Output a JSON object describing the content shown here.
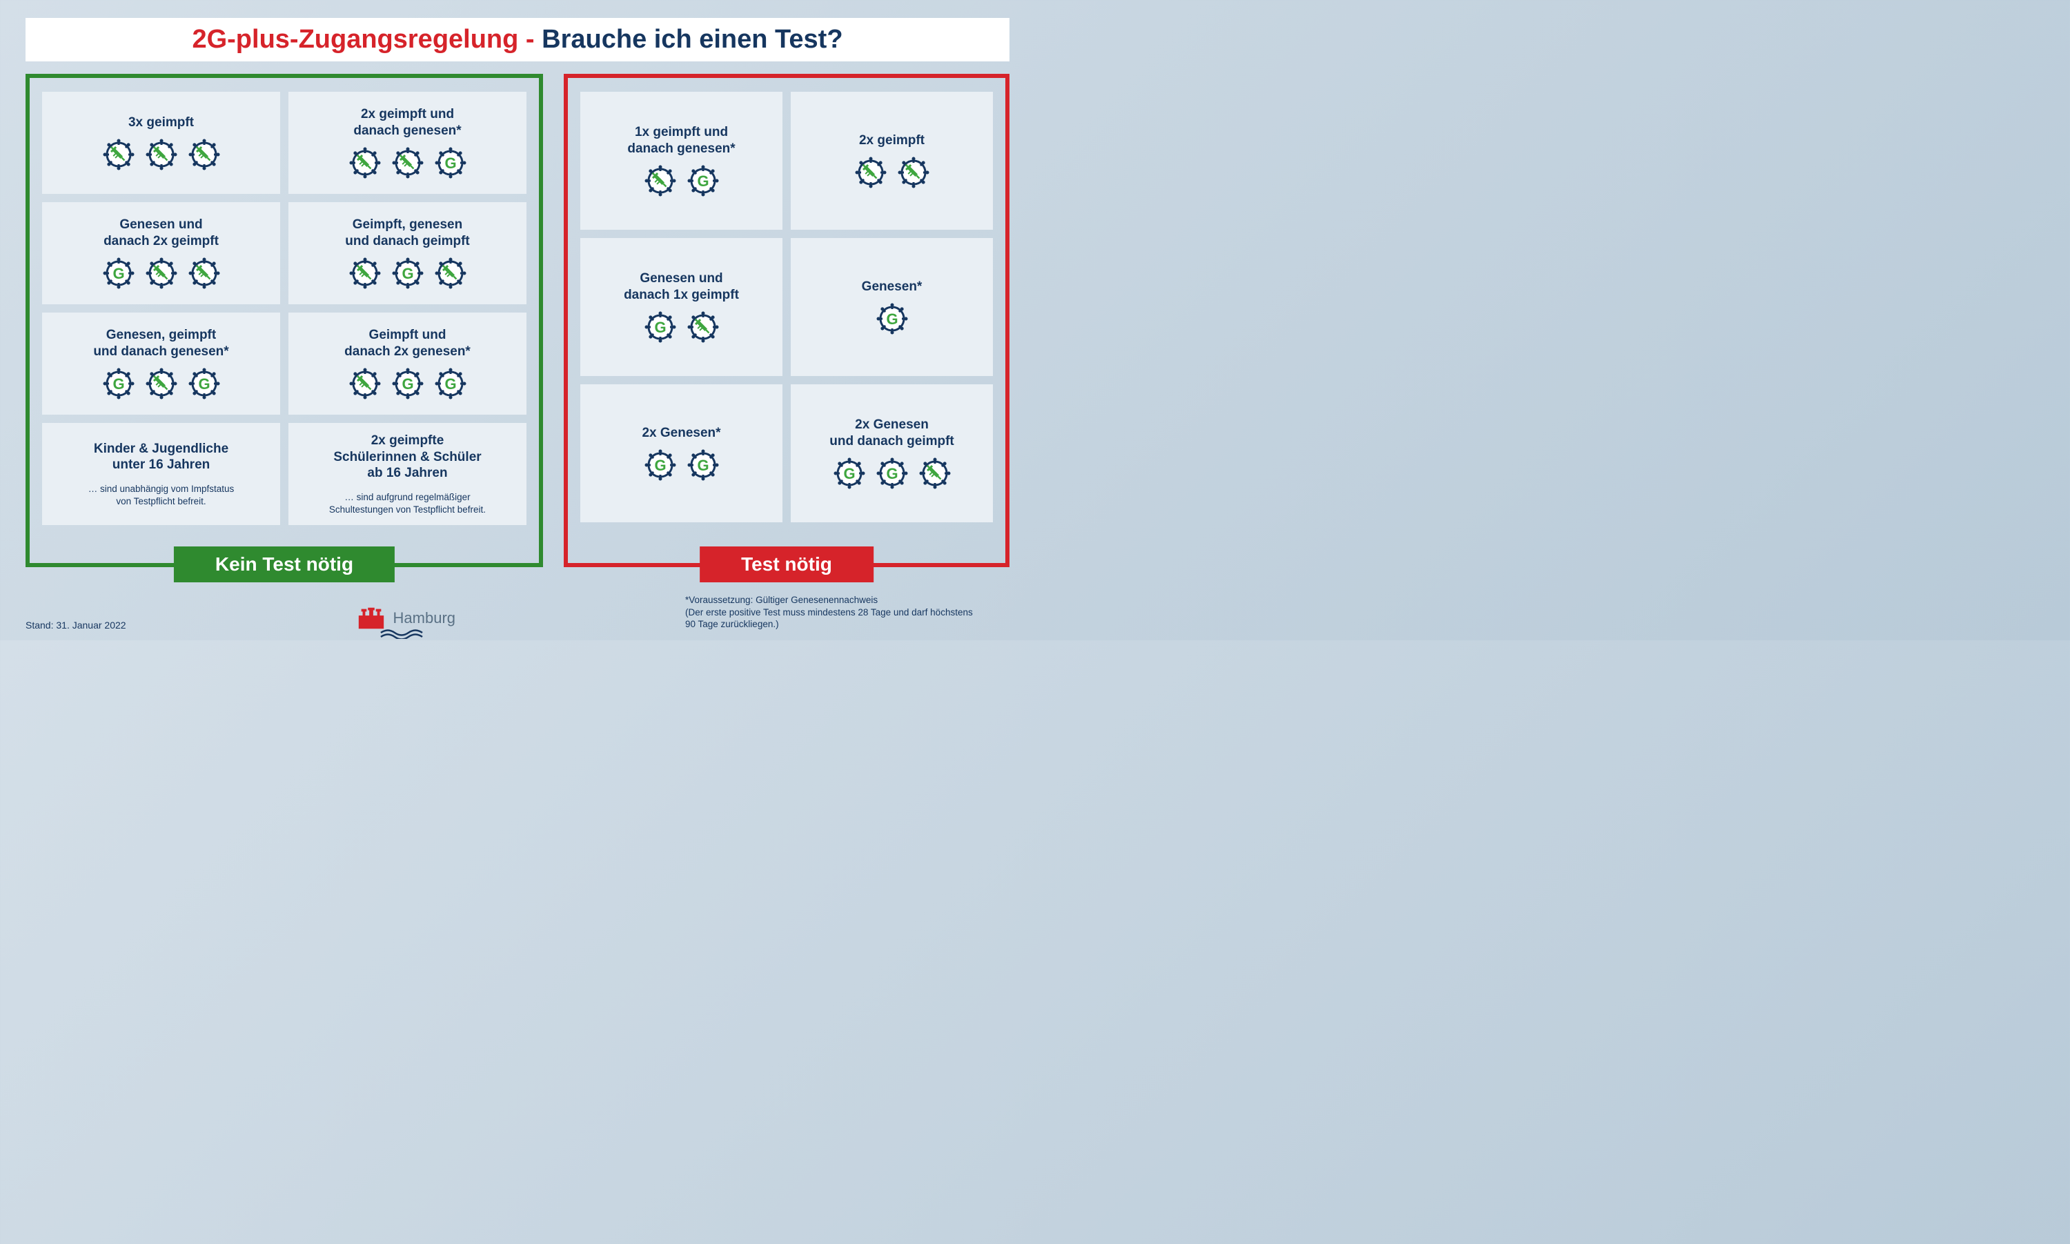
{
  "colors": {
    "navy": "#16365f",
    "red": "#d6232a",
    "green_border": "#2f8a2f",
    "icon_green": "#3fa63f",
    "card_bg": "#e9eff4",
    "bg_grad_from": "#d4dfe8",
    "bg_grad_to": "#b8cad8"
  },
  "title": {
    "part1": "2G-plus-Zugangsregelung - ",
    "part2": "Brauche ich einen Test?"
  },
  "panels": {
    "no_test": {
      "label": "Kein Test nötig",
      "cards": [
        {
          "title": "3x geimpft",
          "icons": [
            "syringe",
            "syringe",
            "syringe"
          ]
        },
        {
          "title": "2x geimpft und\ndanach genesen*",
          "icons": [
            "syringe",
            "syringe",
            "G"
          ]
        },
        {
          "title": "Genesen und\ndanach 2x geimpft",
          "icons": [
            "G",
            "syringe",
            "syringe"
          ]
        },
        {
          "title": "Geimpft, genesen\nund danach geimpft",
          "icons": [
            "syringe",
            "G",
            "syringe"
          ]
        },
        {
          "title": "Genesen, geimpft\nund danach genesen*",
          "icons": [
            "G",
            "syringe",
            "G"
          ]
        },
        {
          "title": "Geimpft und\ndanach 2x genesen*",
          "icons": [
            "syringe",
            "G",
            "G"
          ]
        },
        {
          "title": "Kinder & Jugendliche\nunter 16 Jahren",
          "sub": "… sind unabhängig vom Impfstatus\nvon Testpflicht befreit."
        },
        {
          "title": "2x geimpfte\nSchülerinnen & Schüler\nab 16 Jahren",
          "sub": "… sind aufgrund regelmäßiger\nSchultestungen von Testpflicht befreit."
        }
      ]
    },
    "test": {
      "label": "Test nötig",
      "cards": [
        {
          "title": "1x geimpft und\ndanach genesen*",
          "icons": [
            "syringe",
            "G"
          ]
        },
        {
          "title": "2x geimpft",
          "icons": [
            "syringe",
            "syringe"
          ]
        },
        {
          "title": "Genesen und\ndanach 1x geimpft",
          "icons": [
            "G",
            "syringe"
          ]
        },
        {
          "title": "Genesen*",
          "icons": [
            "G"
          ]
        },
        {
          "title": "2x Genesen*",
          "icons": [
            "G",
            "G"
          ]
        },
        {
          "title": "2x Genesen\nund danach geimpft",
          "icons": [
            "G",
            "G",
            "syringe"
          ]
        }
      ]
    }
  },
  "footer": {
    "stand": "Stand: 31. Januar 2022",
    "logo_text": "Hamburg",
    "note": "*Voraussetzung: Gültiger Genesenennachweis\n(Der erste positive Test muss mindestens 28 Tage und darf höchstens\n90 Tage zurückliegen.)"
  }
}
